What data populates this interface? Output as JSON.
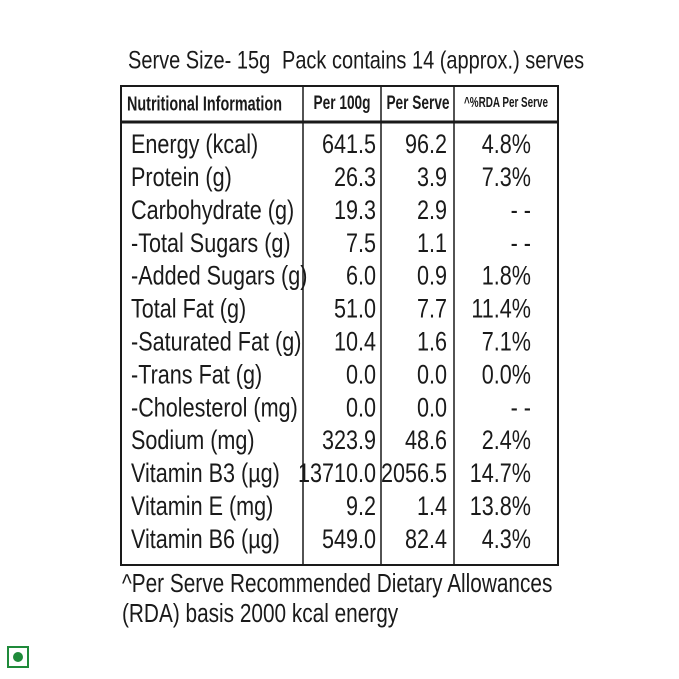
{
  "header": {
    "serve_size": "Serve Size- 15g",
    "pack": "Pack contains 14 (approx.) serves"
  },
  "table": {
    "columns": [
      "Nutritional Information",
      "Per 100g",
      "Per Serve",
      "^%RDA Per Serve"
    ],
    "rows": [
      [
        "Energy (kcal)",
        "641.5",
        "96.2",
        "4.8%"
      ],
      [
        "Protein (g)",
        "26.3",
        "3.9",
        "7.3%"
      ],
      [
        "Carbohydrate (g)",
        "19.3",
        "2.9",
        "- -"
      ],
      [
        "-Total Sugars (g)",
        "7.5",
        "1.1",
        "- -"
      ],
      [
        "-Added Sugars (g)",
        "6.0",
        "0.9",
        "1.8%"
      ],
      [
        "Total Fat (g)",
        "51.0",
        "7.7",
        "11.4%"
      ],
      [
        "-Saturated Fat (g)",
        "10.4",
        "1.6",
        "7.1%"
      ],
      [
        "-Trans Fat (g)",
        "0.0",
        "0.0",
        "0.0%"
      ],
      [
        "-Cholesterol (mg)",
        "0.0",
        "0.0",
        "- -"
      ],
      [
        "Sodium (mg)",
        "323.9",
        "48.6",
        "2.4%"
      ],
      [
        "Vitamin B3 (µg)",
        "13710.0",
        "2056.5",
        "14.7%"
      ],
      [
        "Vitamin E (mg)",
        "9.2",
        "1.4",
        "13.8%"
      ],
      [
        "Vitamin B6 (µg)",
        "549.0",
        "82.4",
        "4.3%"
      ]
    ]
  },
  "footnote": [
    "^Per Serve Recommended Dietary Allowances",
    "(RDA) basis 2000 kcal energy"
  ]
}
